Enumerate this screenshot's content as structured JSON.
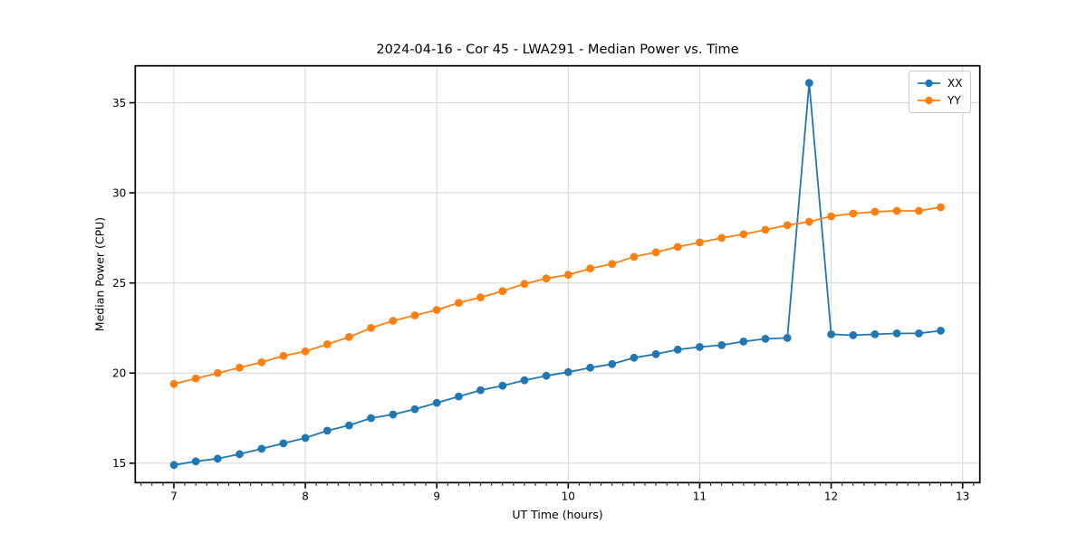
{
  "chart_data": {
    "type": "line",
    "title": "2024-04-16 - Cor 45 - LWA291 - Median Power vs. Time",
    "xlabel": "UT Time (hours)",
    "ylabel": "Median Power (CPU)",
    "xlim": [
      6.706,
      13.131
    ],
    "ylim": [
      13.92,
      37.05
    ],
    "x_ticks": [
      7,
      8,
      9,
      10,
      11,
      12,
      13
    ],
    "y_ticks": [
      15,
      20,
      25,
      30,
      35
    ],
    "x_minor_ticks_per_hour": 12,
    "grid": true,
    "grid_color": "#d9d9d9",
    "legend_position": "upper right",
    "x": [
      7.0,
      7.167,
      7.333,
      7.5,
      7.667,
      7.833,
      8.0,
      8.167,
      8.333,
      8.5,
      8.667,
      8.833,
      9.0,
      9.167,
      9.333,
      9.5,
      9.667,
      9.833,
      10.0,
      10.167,
      10.333,
      10.5,
      10.667,
      10.833,
      11.0,
      11.167,
      11.333,
      11.5,
      11.667,
      11.833,
      12.0,
      12.167,
      12.333,
      12.5,
      12.667,
      12.833
    ],
    "series": [
      {
        "name": "XX",
        "color": "#1f77b4",
        "marker": "circle",
        "values": [
          14.9,
          15.1,
          15.25,
          15.5,
          15.8,
          16.1,
          16.4,
          16.8,
          17.1,
          17.5,
          17.7,
          18.0,
          18.35,
          18.7,
          19.05,
          19.3,
          19.6,
          19.85,
          20.05,
          20.3,
          20.5,
          20.85,
          21.05,
          21.3,
          21.45,
          21.55,
          21.75,
          21.9,
          21.95,
          36.1,
          22.15,
          22.1,
          22.15,
          22.2,
          22.2,
          22.35
        ]
      },
      {
        "name": "YY",
        "color": "#ff7f0e",
        "marker": "circle",
        "values": [
          19.4,
          19.7,
          20.0,
          20.3,
          20.6,
          20.95,
          21.2,
          21.6,
          22.0,
          22.5,
          22.9,
          23.2,
          23.5,
          23.9,
          24.2,
          24.55,
          24.95,
          25.25,
          25.45,
          25.8,
          26.05,
          26.45,
          26.7,
          27.0,
          27.25,
          27.5,
          27.7,
          27.95,
          28.2,
          28.4,
          28.7,
          28.85,
          28.95,
          29.0,
          29.0,
          29.2
        ]
      }
    ]
  }
}
